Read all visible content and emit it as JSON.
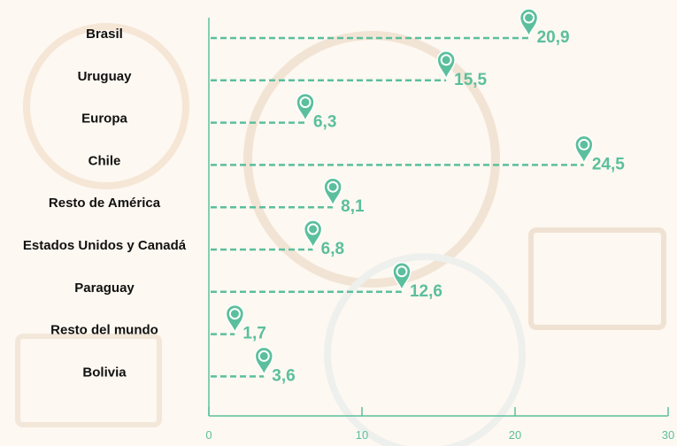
{
  "chart_data": {
    "type": "bar",
    "orientation": "horizontal",
    "categories": [
      "Brasil",
      "Uruguay",
      "Europa",
      "Chile",
      "Resto de América",
      "Estados Unidos y Canadá",
      "Paraguay",
      "Resto del mundo",
      "Bolivia"
    ],
    "values": [
      20.9,
      15.5,
      6.3,
      24.5,
      8.1,
      6.8,
      12.6,
      1.7,
      3.6
    ],
    "value_labels": [
      "20,9",
      "15,5",
      "6,3",
      "24,5",
      "8,1",
      "6,8",
      "12,6",
      "1,7",
      "3,6"
    ],
    "title": "",
    "xlabel": "",
    "ylabel": "",
    "xlim": [
      0,
      30
    ],
    "x_ticks": [
      0,
      10,
      20,
      30
    ],
    "x_tick_labels": [
      "0",
      "10",
      "20",
      "30"
    ],
    "grid": false,
    "marker": "map-pin",
    "colors": {
      "accent": "#5bbf9d",
      "label": "#111111",
      "background": "#fdf8f1"
    }
  }
}
